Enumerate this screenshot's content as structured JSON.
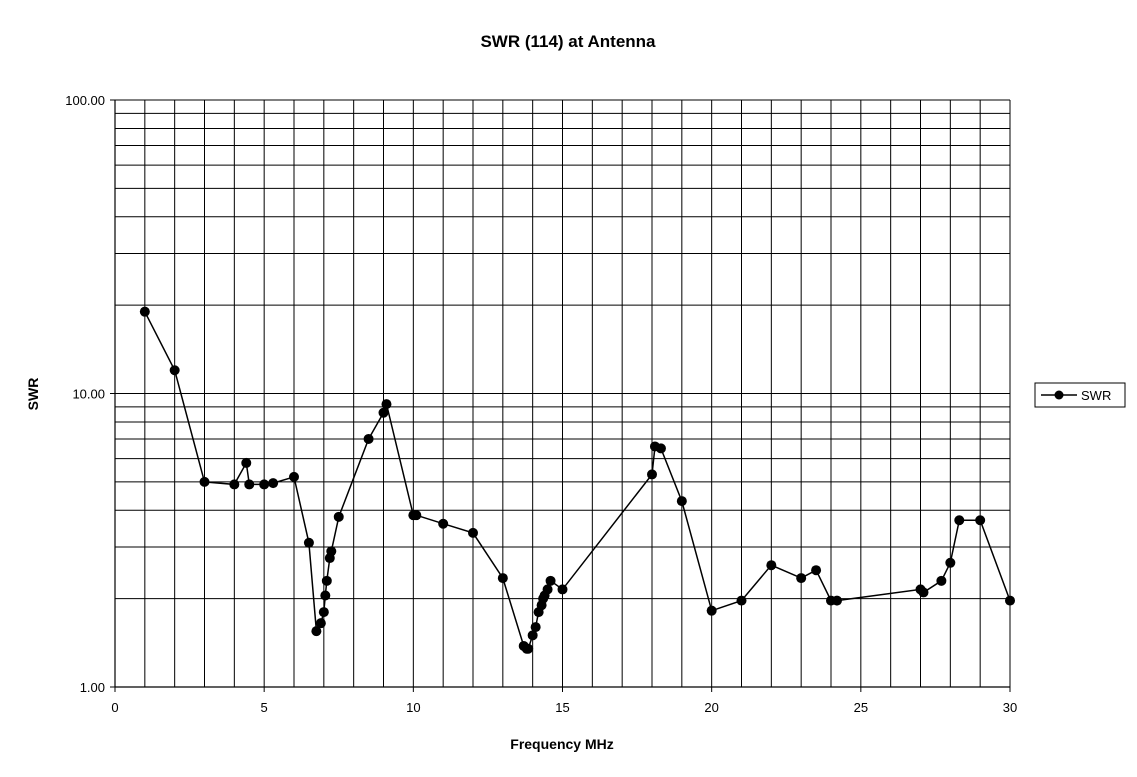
{
  "chart_data": {
    "type": "line",
    "title": "SWR (114) at Antenna",
    "xlabel": "Frequency MHz",
    "ylabel": "SWR",
    "xlim": [
      0,
      30
    ],
    "ylim": [
      1,
      100
    ],
    "y_scale": "log",
    "grid": true,
    "legend_position": "right",
    "x_ticks": [
      0,
      5,
      10,
      15,
      20,
      25,
      30
    ],
    "x_tick_labels": [
      "0",
      "5",
      "10",
      "15",
      "20",
      "25",
      "30"
    ],
    "y_ticks": [
      1,
      10,
      100
    ],
    "y_tick_labels": [
      "1.00",
      "10.00",
      "100.00"
    ],
    "series": [
      {
        "name": "SWR",
        "color": "#000000",
        "marker": "circle",
        "points": [
          [
            1.0,
            19.0
          ],
          [
            2.0,
            12.0
          ],
          [
            3.0,
            5.0
          ],
          [
            4.0,
            4.9
          ],
          [
            4.4,
            5.8
          ],
          [
            4.5,
            4.9
          ],
          [
            5.0,
            4.9
          ],
          [
            5.3,
            4.95
          ],
          [
            6.0,
            5.2
          ],
          [
            6.5,
            3.1
          ],
          [
            6.75,
            1.55
          ],
          [
            6.9,
            1.65
          ],
          [
            7.0,
            1.8
          ],
          [
            7.05,
            2.05
          ],
          [
            7.1,
            2.3
          ],
          [
            7.2,
            2.75
          ],
          [
            7.25,
            2.9
          ],
          [
            7.5,
            3.8
          ],
          [
            8.5,
            7.0
          ],
          [
            9.0,
            8.6
          ],
          [
            9.1,
            9.2
          ],
          [
            10.0,
            3.85
          ],
          [
            10.1,
            3.85
          ],
          [
            11.0,
            3.6
          ],
          [
            12.0,
            3.35
          ],
          [
            13.0,
            2.35
          ],
          [
            13.7,
            1.38
          ],
          [
            13.8,
            1.35
          ],
          [
            13.85,
            1.35
          ],
          [
            14.0,
            1.5
          ],
          [
            14.1,
            1.6
          ],
          [
            14.2,
            1.8
          ],
          [
            14.3,
            1.9
          ],
          [
            14.35,
            2.0
          ],
          [
            14.4,
            2.05
          ],
          [
            14.5,
            2.15
          ],
          [
            14.6,
            2.3
          ],
          [
            15.0,
            2.15
          ],
          [
            18.0,
            5.3
          ],
          [
            18.1,
            6.6
          ],
          [
            18.3,
            6.5
          ],
          [
            19.0,
            4.3
          ],
          [
            20.0,
            1.82
          ],
          [
            21.0,
            1.97
          ],
          [
            22.0,
            2.6
          ],
          [
            23.0,
            2.35
          ],
          [
            23.5,
            2.5
          ],
          [
            24.0,
            1.97
          ],
          [
            24.2,
            1.97
          ],
          [
            27.0,
            2.15
          ],
          [
            27.1,
            2.1
          ],
          [
            27.7,
            2.3
          ],
          [
            28.0,
            2.65
          ],
          [
            28.3,
            3.7
          ],
          [
            29.0,
            3.7
          ],
          [
            30.0,
            1.97
          ]
        ]
      }
    ]
  }
}
